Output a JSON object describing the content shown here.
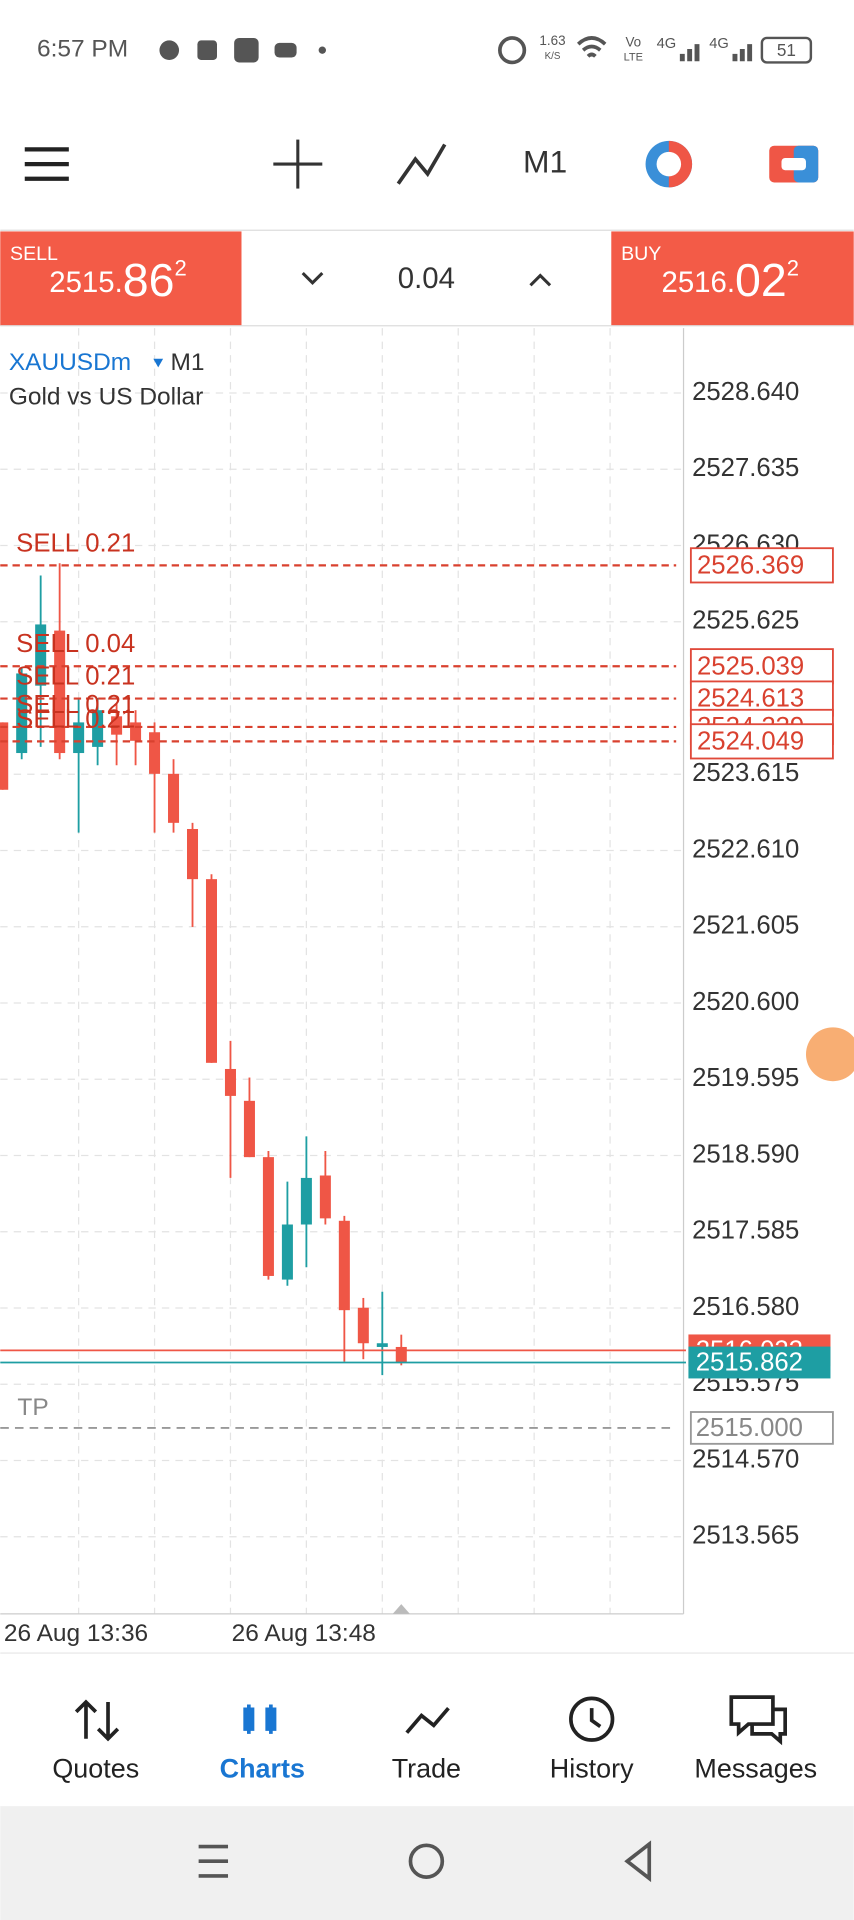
{
  "status_bar": {
    "time": "6:57 PM",
    "speed": "1.63",
    "speed_unit": "K/S",
    "volte_top": "Vo",
    "volte_bottom": "LTE",
    "net1": "4G",
    "net2": "4G",
    "battery": "51"
  },
  "toolbar": {
    "timeframe": "M1"
  },
  "trade_panel": {
    "sell_label": "SELL",
    "sell_small": "2515.",
    "sell_big": "86",
    "sell_sup": "2",
    "volume": "0.04",
    "buy_label": "BUY",
    "buy_small": "2516.",
    "buy_big": "02",
    "buy_sup": "2"
  },
  "chart_data": {
    "type": "candlestick",
    "symbol": "XAUUSDm",
    "timeframe": "M1",
    "description": "Gold vs US Dollar",
    "categories": [
      "26 Aug 13:36",
      null,
      null,
      null,
      null,
      null,
      null,
      null,
      null,
      null,
      null,
      null,
      "26 Aug 13:48",
      null,
      null,
      null,
      null,
      null,
      null,
      null,
      null,
      null
    ],
    "open": [
      2524.299,
      2523.895,
      2524.783,
      2525.509,
      2523.895,
      2523.976,
      2524.379,
      2524.299,
      2524.169,
      2523.621,
      2522.894,
      2522.233,
      2519.731,
      2519.311,
      2518.569,
      2516.955,
      2517.681,
      2518.327,
      2517.73,
      2516.584,
      2516.067,
      2516.067
    ],
    "high": [
      2524.299,
      2525.025,
      2526.235,
      2526.397,
      2524.621,
      2524.621,
      2524.541,
      2524.46,
      2524.299,
      2523.814,
      2522.975,
      2522.297,
      2520.102,
      2519.618,
      2518.65,
      2518.246,
      2518.843,
      2518.65,
      2517.794,
      2516.713,
      2516.794,
      2516.229
    ],
    "low": [
      2523.411,
      2523.814,
      2523.976,
      2523.814,
      2522.846,
      2523.734,
      2523.734,
      2523.734,
      2522.846,
      2522.846,
      2521.603,
      2519.812,
      2518.295,
      2518.569,
      2516.955,
      2516.874,
      2517.117,
      2517.681,
      2515.874,
      2515.906,
      2515.696,
      2515.825
    ],
    "close": [
      2523.411,
      2524.944,
      2525.59,
      2523.895,
      2524.299,
      2524.46,
      2524.137,
      2524.056,
      2523.621,
      2522.975,
      2522.233,
      2519.812,
      2519.376,
      2518.569,
      2517.003,
      2517.681,
      2518.295,
      2517.762,
      2516.552,
      2516.116,
      2516.116,
      2515.862
    ],
    "up_color": "#1e9ea3",
    "down_color": "#ef5646",
    "ylim": [
      2512.549,
      2529.495
    ],
    "yticks": [
      {
        "value": 2528.64,
        "label": "2528.640"
      },
      2527.635,
      {
        "value": 2526.63,
        "label": "2526.630"
      },
      2525.625,
      2523.615,
      {
        "value": 2522.61,
        "label": "2522.610"
      },
      2521.605,
      {
        "value": 2520.6,
        "label": "2520.600"
      },
      2519.595,
      {
        "value": 2518.59,
        "label": "2518.590"
      },
      2517.585,
      {
        "value": 2516.58,
        "label": "2516.580"
      },
      2515.575,
      {
        "value": 2514.57,
        "label": "2514.570"
      },
      2513.565
    ],
    "grid": true,
    "orders": [
      {
        "label": "SELL 0.21",
        "price": 2526.369
      },
      {
        "label": "SELL 0.04",
        "price": 2525.039
      },
      {
        "label": "SELL 0.21",
        "price": 2524.613
      },
      {
        "label": "SELL 0.21",
        "price": 2524.239
      },
      {
        "label": "SELL 0.21",
        "price": 2524.049
      }
    ],
    "ask": 2516.022,
    "bid": 2515.862,
    "take_profit": {
      "label": "TP",
      "price": {
        "value": 2515,
        "label": "2515.000"
      }
    }
  },
  "nav": {
    "items": [
      "Quotes",
      "Charts",
      "Trade",
      "History",
      "Messages"
    ],
    "active": 1
  }
}
